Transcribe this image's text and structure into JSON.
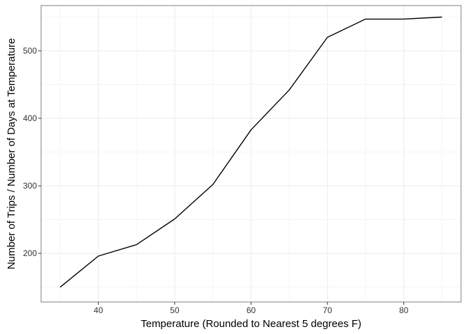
{
  "chart_data": {
    "type": "line",
    "xlabel": "Temperature (Rounded to Nearest 5 degrees F)",
    "ylabel": "Number of Trips / Number of Days at Temperature",
    "xlim": [
      32.5,
      87.5
    ],
    "ylim": [
      128,
      567
    ],
    "x_ticks": [
      40,
      50,
      60,
      70,
      80
    ],
    "y_ticks": [
      200,
      300,
      400,
      500
    ],
    "grid": true,
    "series": [
      {
        "x": [
          35,
          40,
          45,
          50,
          55,
          60,
          65,
          70,
          75,
          80,
          85
        ],
        "y": [
          150,
          196,
          213,
          251,
          302,
          383,
          442,
          520,
          547,
          547,
          550
        ]
      }
    ],
    "colors": {
      "line": "#000000",
      "grid": "#ebebeb",
      "border": "#7f7f7f"
    }
  }
}
